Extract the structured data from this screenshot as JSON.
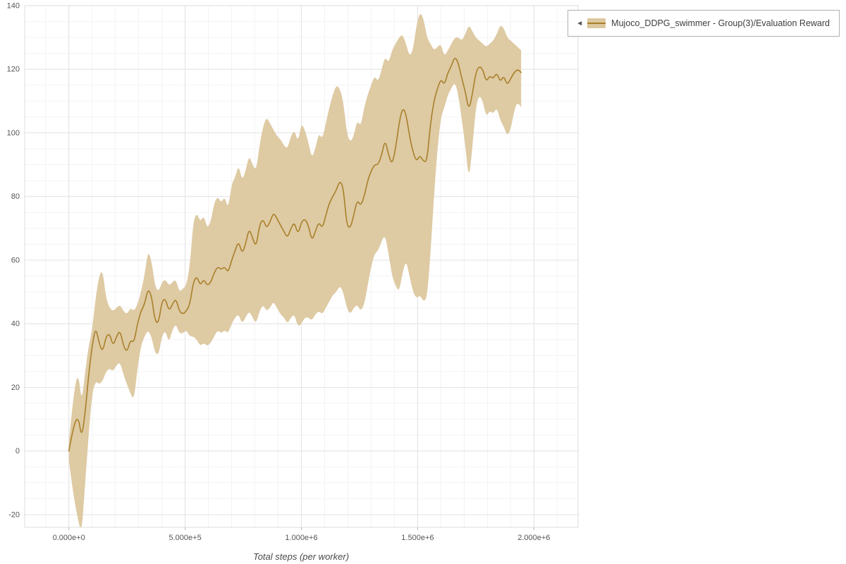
{
  "chart_data": {
    "type": "line",
    "title": "",
    "xlabel": "Total steps (per worker)",
    "ylabel": "",
    "xlim": [
      -190000,
      2190000
    ],
    "ylim": [
      -24,
      140
    ],
    "grid": true,
    "x_minor_step": 100000,
    "y_minor_step": 5,
    "legend_position": "top-right-outside",
    "colors": {
      "band": "#dcc79e",
      "line": "#a8802a",
      "grid_major": "#e3e3e3",
      "grid_minor": "#f3f3f3",
      "plot_border": "#dcdcdc",
      "tick_text": "#555555"
    },
    "x_ticks": [
      {
        "value": 0,
        "label": "0.000e+0"
      },
      {
        "value": 500000,
        "label": "5.000e+5"
      },
      {
        "value": 1000000,
        "label": "1.000e+6"
      },
      {
        "value": 1500000,
        "label": "1.500e+6"
      },
      {
        "value": 2000000,
        "label": "2.000e+6"
      }
    ],
    "y_ticks": [
      {
        "value": -20,
        "label": "-20"
      },
      {
        "value": 0,
        "label": "0"
      },
      {
        "value": 20,
        "label": "20"
      },
      {
        "value": 40,
        "label": "40"
      },
      {
        "value": 60,
        "label": "60"
      },
      {
        "value": 80,
        "label": "80"
      },
      {
        "value": 100,
        "label": "100"
      },
      {
        "value": 120,
        "label": "120"
      },
      {
        "value": 140,
        "label": "140"
      }
    ],
    "legend": [
      {
        "icon": "◄",
        "label": "Mujoco_DDPG_swimmer - Group(3)/Evaluation Reward"
      }
    ],
    "series": [
      {
        "name": "Mujoco_DDPG_swimmer - Group(3)/Evaluation Reward",
        "x": [
          0,
          20000,
          40000,
          55000,
          70000,
          85000,
          100000,
          115000,
          130000,
          145000,
          160000,
          175000,
          190000,
          205000,
          220000,
          235000,
          250000,
          265000,
          280000,
          295000,
          310000,
          325000,
          340000,
          355000,
          370000,
          385000,
          400000,
          415000,
          430000,
          445000,
          460000,
          475000,
          490000,
          505000,
          520000,
          535000,
          550000,
          565000,
          580000,
          595000,
          610000,
          625000,
          640000,
          655000,
          670000,
          685000,
          700000,
          715000,
          730000,
          745000,
          760000,
          775000,
          790000,
          805000,
          820000,
          835000,
          850000,
          865000,
          880000,
          895000,
          910000,
          925000,
          940000,
          955000,
          970000,
          985000,
          1000000,
          1015000,
          1030000,
          1045000,
          1060000,
          1075000,
          1090000,
          1105000,
          1120000,
          1135000,
          1150000,
          1165000,
          1180000,
          1195000,
          1210000,
          1225000,
          1240000,
          1255000,
          1270000,
          1285000,
          1300000,
          1315000,
          1330000,
          1345000,
          1360000,
          1375000,
          1390000,
          1405000,
          1420000,
          1435000,
          1450000,
          1465000,
          1480000,
          1495000,
          1510000,
          1525000,
          1540000,
          1555000,
          1570000,
          1585000,
          1600000,
          1615000,
          1630000,
          1645000,
          1660000,
          1675000,
          1690000,
          1705000,
          1720000,
          1735000,
          1750000,
          1765000,
          1780000,
          1795000,
          1810000,
          1825000,
          1840000,
          1855000,
          1870000,
          1885000,
          1900000,
          1915000,
          1930000,
          1945000
        ],
        "mean": [
          0,
          8,
          11,
          4,
          12,
          24,
          33,
          39,
          34,
          31,
          36,
          37,
          33,
          36,
          38,
          33,
          31,
          35,
          34,
          40,
          44,
          46,
          51,
          49,
          41,
          40,
          47,
          48,
          44,
          46,
          48,
          44,
          43,
          44,
          46,
          53,
          55,
          52,
          54,
          52,
          53,
          56,
          58,
          57,
          58,
          56,
          60,
          63,
          66,
          62,
          65,
          70,
          67,
          64,
          71,
          73,
          70,
          72,
          75,
          73,
          71,
          69,
          67,
          70,
          72,
          68,
          72,
          73,
          71,
          66,
          69,
          72,
          70,
          74,
          78,
          80,
          82,
          85,
          83,
          71,
          70,
          74,
          79,
          77,
          80,
          85,
          88,
          90,
          90,
          93,
          98,
          93,
          90,
          95,
          103,
          108,
          106,
          99,
          94,
          91,
          93,
          91,
          91,
          103,
          110,
          114,
          117,
          115,
          119,
          121,
          124,
          122,
          117,
          113,
          107,
          112,
          119,
          121,
          120,
          116,
          118,
          117,
          119,
          116,
          118,
          115,
          117,
          119,
          120,
          119
        ],
        "lower": [
          -3,
          -14,
          -22,
          -26,
          -10,
          5,
          18,
          22,
          21,
          22,
          25,
          26,
          25,
          27,
          28,
          24,
          21,
          18,
          16,
          26,
          33,
          36,
          38,
          36,
          31,
          30,
          36,
          38,
          34,
          38,
          40,
          37,
          37,
          38,
          36,
          36,
          35,
          33,
          34,
          33,
          34,
          36,
          38,
          37,
          38,
          37,
          40,
          42,
          43,
          40,
          42,
          44,
          42,
          40,
          44,
          46,
          44,
          45,
          47,
          45,
          43,
          42,
          40,
          42,
          43,
          39,
          40,
          42,
          42,
          41,
          43,
          44,
          43,
          45,
          47,
          49,
          50,
          52,
          50,
          45,
          43,
          45,
          46,
          44,
          46,
          52,
          58,
          62,
          63,
          66,
          68,
          62,
          55,
          52,
          50,
          56,
          60,
          55,
          50,
          48,
          49,
          47,
          48,
          62,
          80,
          95,
          105,
          108,
          112,
          114,
          116,
          112,
          104,
          96,
          85,
          95,
          108,
          112,
          110,
          105,
          107,
          106,
          108,
          104,
          102,
          99,
          101,
          107,
          110,
          108
        ],
        "upper": [
          3,
          18,
          25,
          15,
          25,
          33,
          38,
          48,
          55,
          57,
          48,
          45,
          44,
          45,
          46,
          44,
          43,
          45,
          44,
          46,
          50,
          55,
          63,
          60,
          52,
          50,
          53,
          54,
          52,
          53,
          54,
          50,
          51,
          52,
          58,
          72,
          75,
          72,
          74,
          70,
          72,
          78,
          80,
          78,
          80,
          76,
          84,
          86,
          90,
          85,
          88,
          93,
          90,
          88,
          96,
          102,
          105,
          103,
          101,
          99,
          98,
          96,
          95,
          99,
          101,
          97,
          103,
          101,
          97,
          92,
          95,
          100,
          98,
          103,
          108,
          112,
          115,
          114,
          110,
          100,
          97,
          99,
          104,
          102,
          108,
          112,
          115,
          118,
          116,
          120,
          124,
          122,
          126,
          128,
          130,
          131,
          128,
          124,
          126,
          134,
          138,
          136,
          130,
          128,
          126,
          127,
          128,
          124,
          126,
          128,
          130,
          130,
          129,
          131,
          134,
          132,
          130,
          129,
          128,
          127,
          128,
          129,
          131,
          134,
          133,
          130,
          129,
          128,
          127,
          126
        ]
      }
    ]
  }
}
